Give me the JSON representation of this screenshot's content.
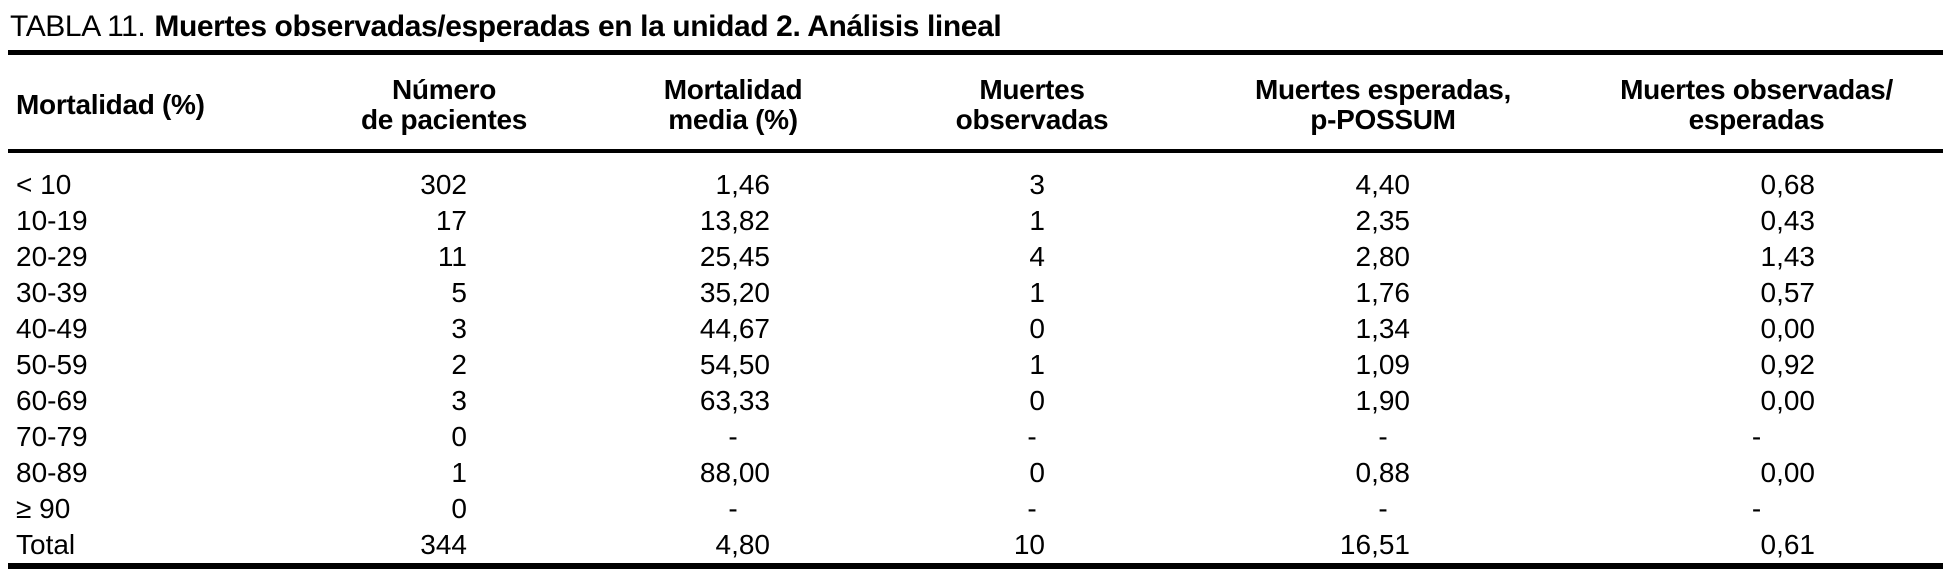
{
  "caption": {
    "label": "TABLA 11.",
    "text": "Muertes observadas/esperadas en la unidad 2. Análisis lineal"
  },
  "table": {
    "headers": [
      [
        "Mortalidad (%)"
      ],
      [
        "Número",
        "de pacientes"
      ],
      [
        "Mortalidad",
        "media (%)"
      ],
      [
        "Muertes",
        "observadas"
      ],
      [
        "Muertes esperadas,",
        "p-POSSUM"
      ],
      [
        "Muertes observadas/",
        "esperadas"
      ]
    ],
    "rows": [
      [
        "< 10",
        "302",
        "1,46",
        "3",
        "4,40",
        "0,68"
      ],
      [
        "10-19",
        "17",
        "13,82",
        "1",
        "2,35",
        "0,43"
      ],
      [
        "20-29",
        "11",
        "25,45",
        "4",
        "2,80",
        "1,43"
      ],
      [
        "30-39",
        "5",
        "35,20",
        "1",
        "1,76",
        "0,57"
      ],
      [
        "40-49",
        "3",
        "44,67",
        "0",
        "1,34",
        "0,00"
      ],
      [
        "50-59",
        "2",
        "54,50",
        "1",
        "1,09",
        "0,92"
      ],
      [
        "60-69",
        "3",
        "63,33",
        "0",
        "1,90",
        "0,00"
      ],
      [
        "70-79",
        "0",
        "-",
        "-",
        "-",
        "-"
      ],
      [
        "80-89",
        "1",
        "88,00",
        "0",
        "0,88",
        "0,00"
      ],
      [
        "≥ 90",
        "0",
        "-",
        "-",
        "-",
        "-"
      ],
      [
        "Total",
        "344",
        "4,80",
        "10",
        "16,51",
        "0,61"
      ]
    ]
  },
  "colors": {
    "ink": "#000000",
    "paper": "#ffffff"
  }
}
